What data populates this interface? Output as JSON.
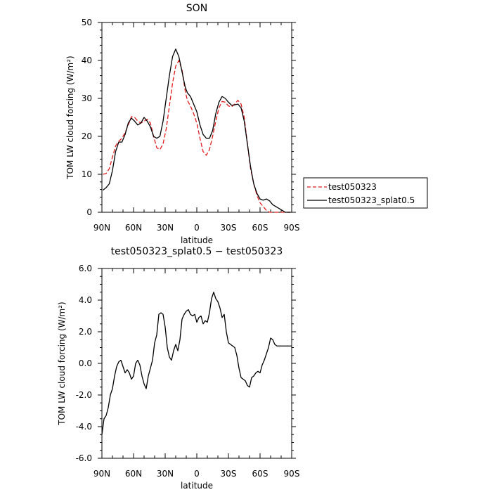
{
  "chart_data": [
    {
      "type": "line",
      "title": "SON",
      "xlabel": "latitude",
      "ylabel": "TOM LW cloud forcing (W/m²)",
      "xlim": [
        90,
        -90
      ],
      "ylim": [
        0,
        50
      ],
      "xticks": [
        90,
        60,
        30,
        0,
        -30,
        -60,
        -90
      ],
      "xtick_labels": [
        "90N",
        "60N",
        "30N",
        "0",
        "30S",
        "60S",
        "90S"
      ],
      "yticks": [
        0,
        10,
        20,
        30,
        40,
        50
      ],
      "ytick_labels": [
        "0",
        "10",
        "20",
        "30",
        "40",
        "50"
      ],
      "legend_position": "right",
      "series": [
        {
          "name": "test050323",
          "color": "#e31a1c",
          "dash": "dashed",
          "x": [
            89,
            86,
            83,
            80,
            77,
            74,
            71,
            68,
            65,
            62,
            59,
            56,
            53,
            50,
            47,
            44,
            41,
            38,
            35,
            32,
            29,
            26,
            23,
            20,
            17,
            14,
            11,
            9,
            6,
            3,
            0,
            -3,
            -6,
            -9,
            -12,
            -15,
            -18,
            -21,
            -24,
            -27,
            -30,
            -33,
            -36,
            -39,
            -42,
            -45,
            -48,
            -51,
            -54,
            -57,
            -60,
            -63,
            -66,
            -69,
            -72,
            -75,
            -78,
            -81,
            -84,
            -87,
            -89
          ],
          "values": [
            10,
            10.2,
            11.5,
            14.5,
            17.5,
            18.7,
            19.5,
            21,
            23,
            25.2,
            25,
            24,
            23.5,
            24,
            24.5,
            23.5,
            20,
            17,
            16.5,
            18,
            22,
            28,
            34,
            38.5,
            40,
            37.5,
            32,
            29.5,
            28,
            26,
            23.5,
            19.5,
            16,
            15,
            16.5,
            20,
            24,
            27.5,
            29.2,
            29,
            28,
            27.8,
            28.5,
            29.5,
            28.5,
            25,
            18,
            11.5,
            7.5,
            4.5,
            2.5,
            1.5,
            0.5,
            0,
            0,
            0,
            0,
            0,
            0,
            0,
            0
          ]
        },
        {
          "name": "test050323_splat0.5",
          "color": "#000000",
          "dash": "solid",
          "x": [
            89,
            86,
            83,
            80,
            77,
            74,
            71,
            68,
            65,
            62,
            59,
            56,
            53,
            50,
            47,
            44,
            41,
            38,
            35,
            32,
            29,
            26,
            23,
            20,
            17,
            14,
            11,
            9,
            6,
            3,
            0,
            -3,
            -6,
            -9,
            -12,
            -15,
            -18,
            -21,
            -24,
            -27,
            -30,
            -33,
            -36,
            -39,
            -42,
            -45,
            -48,
            -51,
            -54,
            -57,
            -60,
            -63,
            -66,
            -69,
            -72,
            -75,
            -78,
            -81,
            -84,
            -87,
            -89
          ],
          "values": [
            5.8,
            6.5,
            7.5,
            11,
            16,
            18.5,
            18.5,
            20.5,
            23.5,
            24.8,
            24,
            23,
            23.5,
            25,
            24,
            22.5,
            20,
            19.5,
            20,
            24,
            30,
            36,
            41,
            43,
            41,
            37,
            33,
            31.5,
            30.5,
            28.5,
            26.5,
            23,
            20.5,
            19.5,
            19.5,
            21.5,
            26,
            29,
            30.5,
            30,
            29,
            28.2,
            28.3,
            28.5,
            27.5,
            24,
            18,
            12,
            7.5,
            5,
            3.5,
            3.2,
            3.5,
            3,
            2,
            1.5,
            1,
            0.5,
            0,
            0,
            0
          ]
        }
      ]
    },
    {
      "type": "line",
      "title": "test050323_splat0.5 − test050323",
      "xlabel": "latitude",
      "ylabel": "TOM LW cloud forcing (W/m²)",
      "xlim": [
        90,
        -90
      ],
      "ylim": [
        -6,
        6
      ],
      "xticks": [
        90,
        60,
        30,
        0,
        -30,
        -60,
        -90
      ],
      "xtick_labels": [
        "90N",
        "60N",
        "30N",
        "0",
        "30S",
        "60S",
        "90S"
      ],
      "yticks": [
        -6,
        -4,
        -2,
        0,
        2,
        4,
        6
      ],
      "ytick_labels": [
        "-6.0",
        "-4.0",
        "-2.0",
        "0.0",
        "2.0",
        "4.0",
        "6.0"
      ],
      "series": [
        {
          "color": "#000000",
          "dash": "solid",
          "x": [
            90,
            88,
            86,
            84,
            82,
            80,
            78,
            76,
            74,
            72,
            70,
            68,
            66,
            64,
            62,
            60,
            58,
            56,
            54,
            52,
            50,
            48,
            46,
            44,
            42,
            40,
            38,
            36,
            34,
            32,
            30,
            28,
            26,
            24,
            22,
            20,
            18,
            16,
            14,
            12,
            10,
            8,
            6,
            4,
            2,
            0,
            -2,
            -4,
            -6,
            -8,
            -10,
            -12,
            -14,
            -16,
            -18,
            -20,
            -22,
            -24,
            -26,
            -28,
            -30,
            -32,
            -34,
            -36,
            -38,
            -40,
            -42,
            -44,
            -46,
            -48,
            -50,
            -52,
            -54,
            -56,
            -58,
            -60,
            -62,
            -64,
            -66,
            -68,
            -70,
            -72,
            -74,
            -76,
            -78,
            -80,
            -82,
            -84,
            -86,
            -88,
            -90
          ],
          "values": [
            -4.5,
            -3.5,
            -3.3,
            -2.8,
            -2,
            -1.6,
            -0.8,
            -0.2,
            0.1,
            0.2,
            -0.2,
            -0.6,
            -0.4,
            -0.6,
            -1.0,
            -0.8,
            0.0,
            0.2,
            -0.1,
            -0.8,
            -1.3,
            -1.6,
            -0.8,
            -0.3,
            0.2,
            1.3,
            1.8,
            3.1,
            3.2,
            3.1,
            2.3,
            1.0,
            0.4,
            0.2,
            0.8,
            1.2,
            0.8,
            1.5,
            2.8,
            3.1,
            3.3,
            3.4,
            3.1,
            3.0,
            3.1,
            2.6,
            2.9,
            3.0,
            2.5,
            2.7,
            2.6,
            3.2,
            4.1,
            4.5,
            4.1,
            3.9,
            3.5,
            2.9,
            3.1,
            2.0,
            1.3,
            1.2,
            1.1,
            1.0,
            0.5,
            -0.3,
            -0.9,
            -1.0,
            -1.1,
            -1.4,
            -1.5,
            -0.9,
            -0.8,
            -0.6,
            -0.5,
            -0.6,
            -0.1,
            0.2,
            0.6,
            1.0,
            1.6,
            1.5,
            1.2,
            1.1,
            1.1,
            1.1,
            1.1,
            1.1,
            1.1,
            1.1,
            1.1
          ]
        }
      ]
    }
  ]
}
